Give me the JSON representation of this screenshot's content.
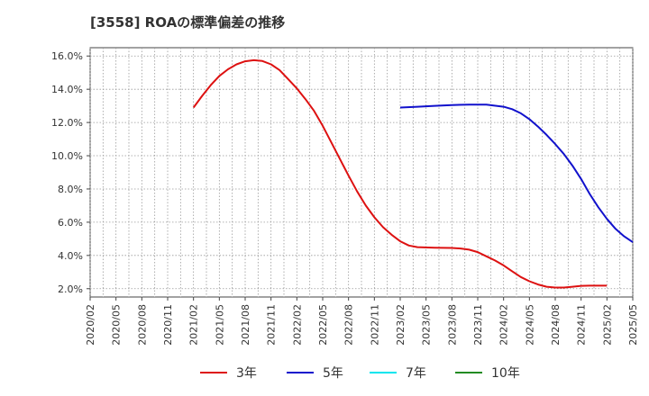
{
  "chart_data": {
    "type": "line",
    "title": "[3558]  ROAの標準偏差の推移",
    "xlabel": "",
    "ylabel": "",
    "x_ticks": [
      "2020/02",
      "2020/05",
      "2020/08",
      "2020/11",
      "2021/02",
      "2021/05",
      "2021/08",
      "2021/11",
      "2022/02",
      "2022/05",
      "2022/08",
      "2022/11",
      "2023/02",
      "2023/05",
      "2023/08",
      "2023/11",
      "2024/02",
      "2024/05",
      "2024/08",
      "2024/11",
      "2025/02",
      "2025/05"
    ],
    "y_ticks": [
      "2.0%",
      "4.0%",
      "6.0%",
      "8.0%",
      "10.0%",
      "12.0%",
      "14.0%",
      "16.0%"
    ],
    "ylim": [
      1.5,
      16.5
    ],
    "y_tick_values": [
      2,
      4,
      6,
      8,
      10,
      12,
      14,
      16
    ],
    "grid": true,
    "legend_position": "bottom",
    "series": [
      {
        "name": "3年",
        "color": "#dd1111",
        "points": [
          [
            12,
            12.9
          ],
          [
            13,
            13.6
          ],
          [
            14,
            14.25
          ],
          [
            15,
            14.8
          ],
          [
            16,
            15.2
          ],
          [
            17,
            15.5
          ],
          [
            18,
            15.68
          ],
          [
            19,
            15.75
          ],
          [
            20,
            15.7
          ],
          [
            21,
            15.5
          ],
          [
            22,
            15.15
          ],
          [
            23,
            14.6
          ],
          [
            24,
            14.05
          ],
          [
            25,
            13.4
          ],
          [
            26,
            12.7
          ],
          [
            27,
            11.8
          ],
          [
            28,
            10.8
          ],
          [
            29,
            9.8
          ],
          [
            30,
            8.8
          ],
          [
            31,
            7.85
          ],
          [
            32,
            7.0
          ],
          [
            33,
            6.3
          ],
          [
            34,
            5.7
          ],
          [
            35,
            5.25
          ],
          [
            36,
            4.85
          ],
          [
            37,
            4.6
          ],
          [
            38,
            4.5
          ],
          [
            40,
            4.47
          ],
          [
            42,
            4.45
          ],
          [
            43,
            4.42
          ],
          [
            44,
            4.35
          ],
          [
            45,
            4.2
          ],
          [
            46,
            3.95
          ],
          [
            47,
            3.7
          ],
          [
            48,
            3.4
          ],
          [
            49,
            3.05
          ],
          [
            50,
            2.7
          ],
          [
            51,
            2.45
          ],
          [
            52,
            2.25
          ],
          [
            53,
            2.12
          ],
          [
            54,
            2.07
          ],
          [
            55,
            2.07
          ],
          [
            56,
            2.12
          ],
          [
            57,
            2.17
          ],
          [
            58,
            2.18
          ],
          [
            59,
            2.18
          ],
          [
            60,
            2.18
          ]
        ]
      },
      {
        "name": "5年",
        "color": "#1111cc",
        "points": [
          [
            36,
            12.9
          ],
          [
            38,
            12.95
          ],
          [
            40,
            13.0
          ],
          [
            42,
            13.05
          ],
          [
            44,
            13.08
          ],
          [
            46,
            13.07
          ],
          [
            48,
            12.95
          ],
          [
            49,
            12.8
          ],
          [
            50,
            12.55
          ],
          [
            51,
            12.2
          ],
          [
            52,
            11.75
          ],
          [
            53,
            11.25
          ],
          [
            54,
            10.7
          ],
          [
            55,
            10.1
          ],
          [
            56,
            9.4
          ],
          [
            57,
            8.6
          ],
          [
            58,
            7.7
          ],
          [
            59,
            6.9
          ],
          [
            60,
            6.2
          ],
          [
            61,
            5.6
          ],
          [
            62,
            5.15
          ],
          [
            63,
            4.8
          ]
        ]
      },
      {
        "name": "7年",
        "color": "#00e5ee",
        "points": []
      },
      {
        "name": "10年",
        "color": "#228b22",
        "points": []
      }
    ]
  }
}
